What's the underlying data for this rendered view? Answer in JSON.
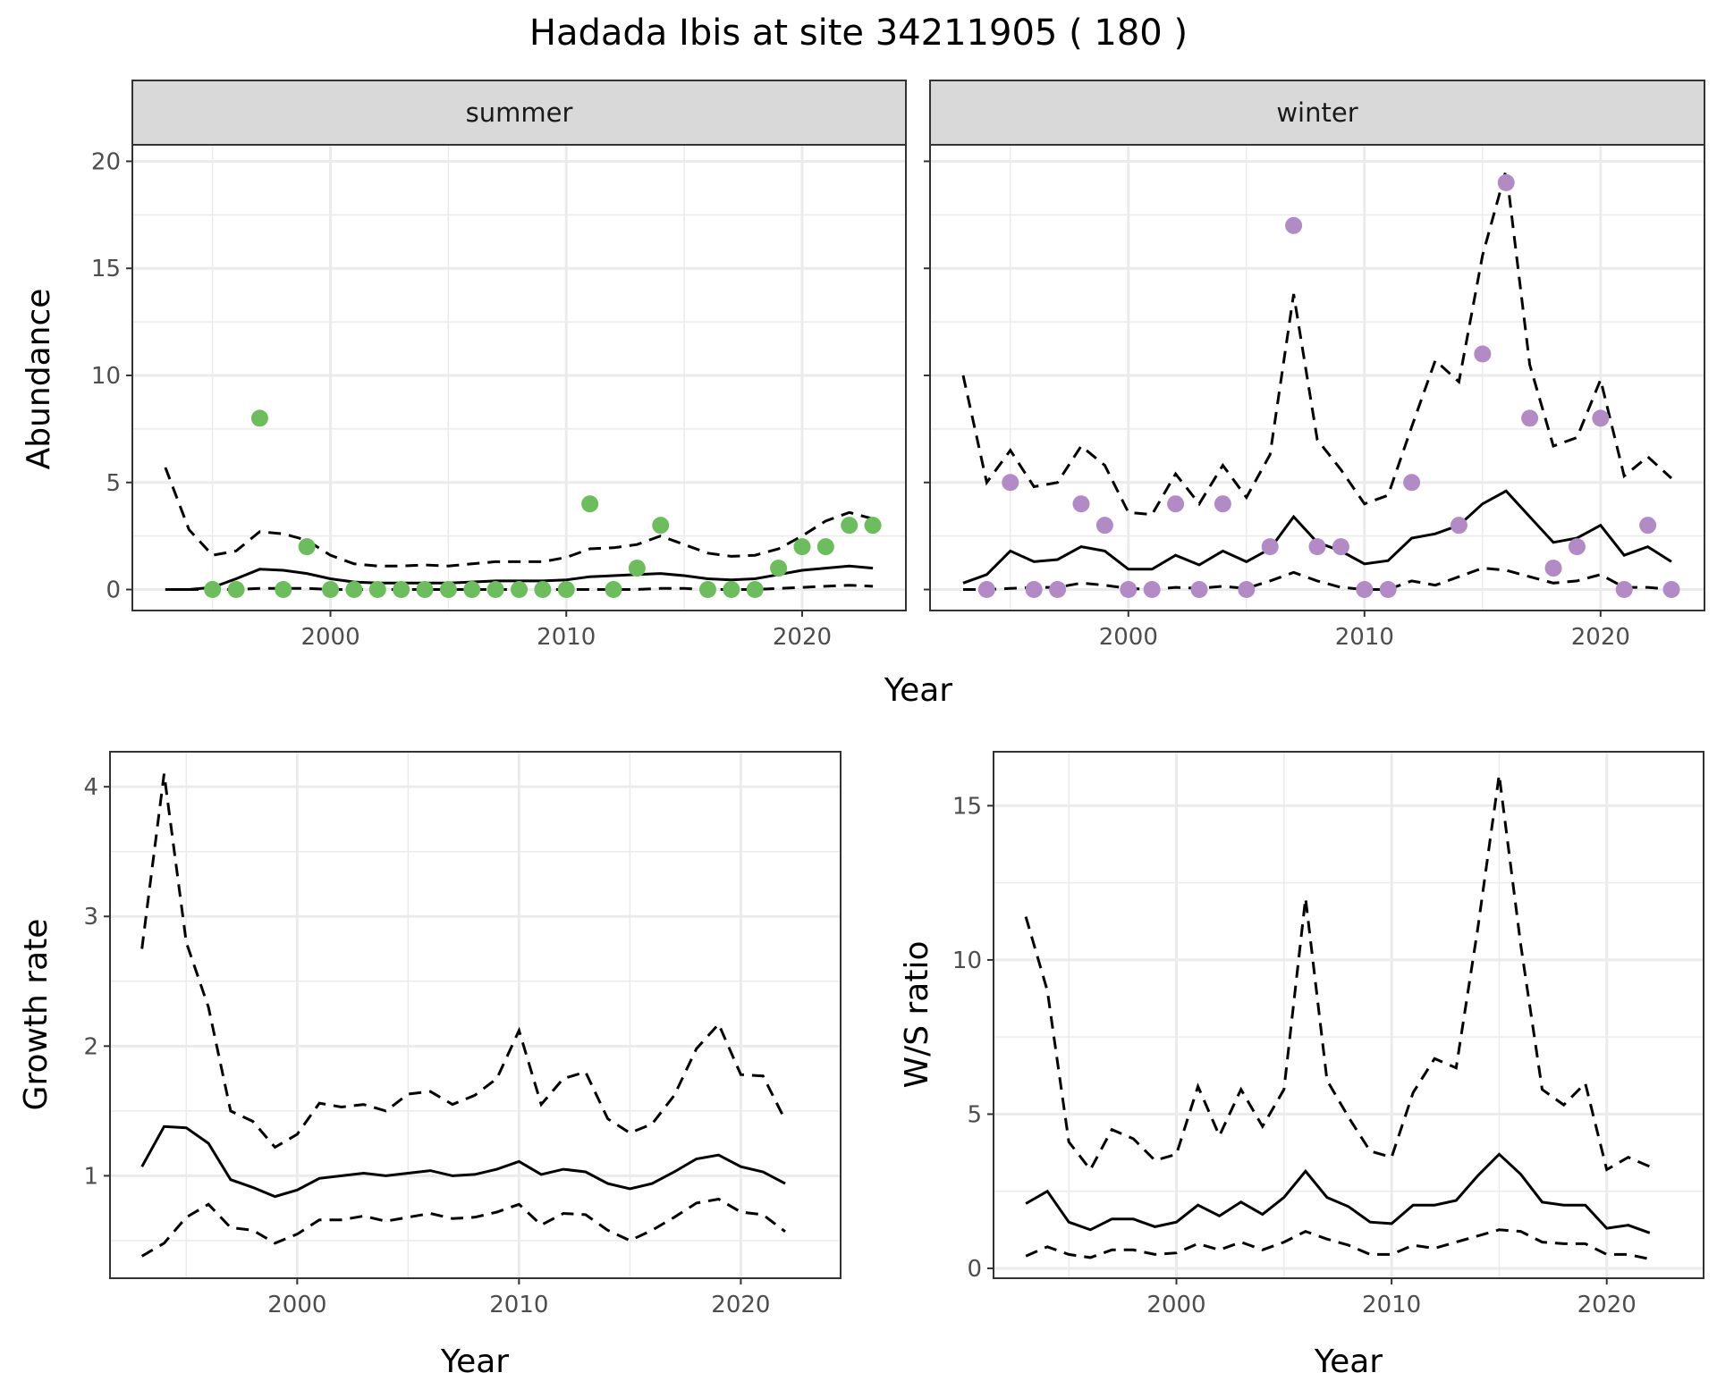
{
  "title": "Hadada Ibis at site 34211905 ( 180 )",
  "colors": {
    "summer": "#6cbd5c",
    "winter": "#b28ac6",
    "line": "#000000"
  },
  "chart_data": [
    {
      "type": "line+scatter",
      "facet": "summer",
      "xlabel": "Year",
      "ylabel": "Abundance",
      "xlim": [
        1991.6,
        2024.4
      ],
      "ylim": [
        -0.98,
        20.77
      ],
      "xticks": [
        2000,
        2010,
        2020
      ],
      "yticks": [
        0,
        5,
        10,
        15,
        20
      ],
      "grid": true,
      "points": {
        "x": [
          1995,
          1996,
          1997,
          1998,
          1999,
          2000,
          2001,
          2002,
          2003,
          2004,
          2005,
          2006,
          2007,
          2008,
          2009,
          2010,
          2011,
          2012,
          2013,
          2014,
          2016,
          2017,
          2018,
          2019,
          2020,
          2021,
          2022,
          2023
        ],
        "y": [
          0,
          0,
          8,
          0,
          2,
          0,
          0,
          0,
          0,
          0,
          0,
          0,
          0,
          0,
          0,
          0,
          4,
          0,
          1,
          3,
          0,
          0,
          0,
          1,
          2,
          2,
          3,
          3
        ]
      },
      "line_x": [
        1993,
        1994,
        1995,
        1996,
        1997,
        1998,
        1999,
        2000,
        2001,
        2002,
        2003,
        2004,
        2005,
        2006,
        2007,
        2008,
        2009,
        2010,
        2011,
        2012,
        2013,
        2014,
        2015,
        2016,
        2017,
        2018,
        2019,
        2020,
        2021,
        2022,
        2023
      ],
      "mean": [
        0,
        0,
        0.1,
        0.5,
        0.95,
        0.9,
        0.75,
        0.5,
        0.35,
        0.3,
        0.3,
        0.3,
        0.3,
        0.35,
        0.4,
        0.4,
        0.4,
        0.45,
        0.6,
        0.65,
        0.7,
        0.75,
        0.65,
        0.5,
        0.45,
        0.5,
        0.7,
        0.9,
        1.0,
        1.1,
        1.0
      ],
      "upper": [
        5.7,
        2.8,
        1.6,
        1.8,
        2.7,
        2.6,
        2.3,
        1.6,
        1.2,
        1.1,
        1.1,
        1.15,
        1.1,
        1.2,
        1.3,
        1.3,
        1.3,
        1.5,
        1.9,
        1.95,
        2.1,
        2.5,
        2.1,
        1.7,
        1.55,
        1.6,
        1.9,
        2.5,
        3.2,
        3.6,
        3.3
      ],
      "lower": [
        0,
        0,
        0,
        0,
        0.05,
        0.05,
        0.05,
        0,
        0,
        0,
        0,
        0,
        0,
        0,
        0,
        0,
        0,
        0,
        0,
        0,
        0,
        0.05,
        0.05,
        0,
        0,
        0,
        0.05,
        0.1,
        0.15,
        0.2,
        0.15
      ]
    },
    {
      "type": "line+scatter",
      "facet": "winter",
      "xlabel": "Year",
      "ylabel": "Abundance",
      "xlim": [
        1991.6,
        2024.4
      ],
      "ylim": [
        -0.98,
        20.77
      ],
      "xticks": [
        2000,
        2010,
        2020
      ],
      "yticks": [
        0,
        5,
        10,
        15,
        20
      ],
      "grid": true,
      "points": {
        "x": [
          1994,
          1995,
          1996,
          1997,
          1998,
          1999,
          2000,
          2001,
          2002,
          2003,
          2004,
          2005,
          2006,
          2007,
          2008,
          2009,
          2010,
          2011,
          2012,
          2014,
          2015,
          2016,
          2017,
          2018,
          2019,
          2020,
          2021,
          2022,
          2023
        ],
        "y": [
          0,
          5,
          0,
          0,
          4,
          3,
          0,
          0,
          4,
          0,
          4,
          0,
          2,
          17,
          2,
          2,
          0,
          0,
          5,
          3,
          11,
          19,
          8,
          1,
          2,
          8,
          0,
          3,
          0
        ]
      },
      "line_x": [
        1993,
        1994,
        1995,
        1996,
        1997,
        1998,
        1999,
        2000,
        2001,
        2002,
        2003,
        2004,
        2005,
        2006,
        2007,
        2008,
        2009,
        2010,
        2011,
        2012,
        2013,
        2014,
        2015,
        2016,
        2017,
        2018,
        2019,
        2020,
        2021,
        2022,
        2023
      ],
      "mean": [
        0.3,
        0.7,
        1.8,
        1.3,
        1.4,
        2.0,
        1.8,
        0.95,
        0.95,
        1.6,
        1.15,
        1.8,
        1.3,
        1.9,
        3.4,
        2.2,
        1.8,
        1.2,
        1.35,
        2.4,
        2.6,
        3.0,
        4.0,
        4.6,
        3.4,
        2.2,
        2.4,
        3.0,
        1.6,
        2.0,
        1.3
      ],
      "upper": [
        10,
        5,
        6.5,
        4.8,
        5.0,
        6.7,
        5.8,
        3.6,
        3.5,
        5.4,
        4.0,
        5.8,
        4.3,
        6.3,
        13.8,
        7.0,
        5.6,
        4.0,
        4.4,
        7.6,
        10.7,
        9.7,
        15.6,
        19.6,
        10.5,
        6.7,
        7.1,
        9.8,
        5.3,
        6.2,
        5.2
      ],
      "lower": [
        0,
        0,
        0.05,
        0.1,
        0.1,
        0.3,
        0.2,
        0.05,
        0,
        0.1,
        0.05,
        0.15,
        0.05,
        0.4,
        0.8,
        0.4,
        0.1,
        0,
        0,
        0.4,
        0.2,
        0.6,
        1.0,
        0.9,
        0.6,
        0.3,
        0.4,
        0.7,
        0.1,
        0.1,
        0
      ]
    },
    {
      "type": "line",
      "xlabel": "Year",
      "ylabel": "Growth rate",
      "xlim": [
        1991.56,
        2024.5
      ],
      "ylim": [
        0.21,
        4.27
      ],
      "xticks": [
        2000,
        2010,
        2020
      ],
      "yticks": [
        1,
        2,
        3,
        4
      ],
      "grid": true,
      "line_x": [
        1993,
        1994,
        1995,
        1996,
        1997,
        1998,
        1999,
        2000,
        2001,
        2002,
        2003,
        2004,
        2005,
        2006,
        2007,
        2008,
        2009,
        2010,
        2011,
        2012,
        2013,
        2014,
        2015,
        2016,
        2017,
        2018,
        2019,
        2020,
        2021,
        2022
      ],
      "mean": [
        1.07,
        1.38,
        1.37,
        1.25,
        0.97,
        0.91,
        0.84,
        0.89,
        0.98,
        1.0,
        1.02,
        1.0,
        1.02,
        1.04,
        1.0,
        1.01,
        1.05,
        1.11,
        1.01,
        1.05,
        1.03,
        0.94,
        0.9,
        0.94,
        1.03,
        1.13,
        1.16,
        1.07,
        1.03,
        0.94
      ],
      "upper": [
        2.75,
        4.1,
        2.8,
        2.3,
        1.5,
        1.42,
        1.22,
        1.32,
        1.56,
        1.53,
        1.55,
        1.5,
        1.63,
        1.65,
        1.55,
        1.62,
        1.75,
        2.12,
        1.55,
        1.75,
        1.8,
        1.44,
        1.33,
        1.4,
        1.62,
        1.98,
        2.17,
        1.78,
        1.77,
        1.43
      ],
      "lower": [
        0.38,
        0.48,
        0.68,
        0.78,
        0.6,
        0.58,
        0.48,
        0.55,
        0.66,
        0.66,
        0.69,
        0.65,
        0.68,
        0.71,
        0.67,
        0.68,
        0.72,
        0.78,
        0.62,
        0.71,
        0.7,
        0.58,
        0.5,
        0.58,
        0.68,
        0.79,
        0.82,
        0.72,
        0.7,
        0.57
      ]
    },
    {
      "type": "line",
      "xlabel": "Year",
      "ylabel": "W/S ratio",
      "xlim": [
        1991.5,
        2024.5
      ],
      "ylim": [
        -0.32,
        16.75
      ],
      "xticks": [
        2000,
        2010,
        2020
      ],
      "yticks": [
        0,
        5,
        10,
        15
      ],
      "grid": true,
      "line_x": [
        1993,
        1994,
        1995,
        1996,
        1997,
        1998,
        1999,
        2000,
        2001,
        2002,
        2003,
        2004,
        2005,
        2006,
        2007,
        2008,
        2009,
        2010,
        2011,
        2012,
        2013,
        2014,
        2015,
        2016,
        2017,
        2018,
        2019,
        2020,
        2021,
        2022
      ],
      "mean": [
        2.1,
        2.5,
        1.5,
        1.25,
        1.6,
        1.6,
        1.35,
        1.5,
        2.05,
        1.7,
        2.15,
        1.75,
        2.3,
        3.15,
        2.3,
        2.0,
        1.5,
        1.45,
        2.05,
        2.05,
        2.2,
        3.0,
        3.7,
        3.05,
        2.15,
        2.05,
        2.05,
        1.3,
        1.4,
        1.15
      ],
      "upper": [
        11.4,
        9,
        4.1,
        3.2,
        4.5,
        4.2,
        3.5,
        3.7,
        5.9,
        4.3,
        5.8,
        4.6,
        5.8,
        12,
        6.1,
        4.9,
        3.8,
        3.6,
        5.7,
        6.8,
        6.5,
        11,
        16,
        10.5,
        5.8,
        5.3,
        6,
        3.2,
        3.6,
        3.3
      ],
      "lower": [
        0.4,
        0.7,
        0.45,
        0.35,
        0.6,
        0.6,
        0.45,
        0.5,
        0.8,
        0.6,
        0.85,
        0.6,
        0.85,
        1.2,
        0.95,
        0.75,
        0.45,
        0.45,
        0.75,
        0.65,
        0.85,
        1.05,
        1.25,
        1.2,
        0.85,
        0.8,
        0.8,
        0.45,
        0.45,
        0.3
      ]
    }
  ]
}
